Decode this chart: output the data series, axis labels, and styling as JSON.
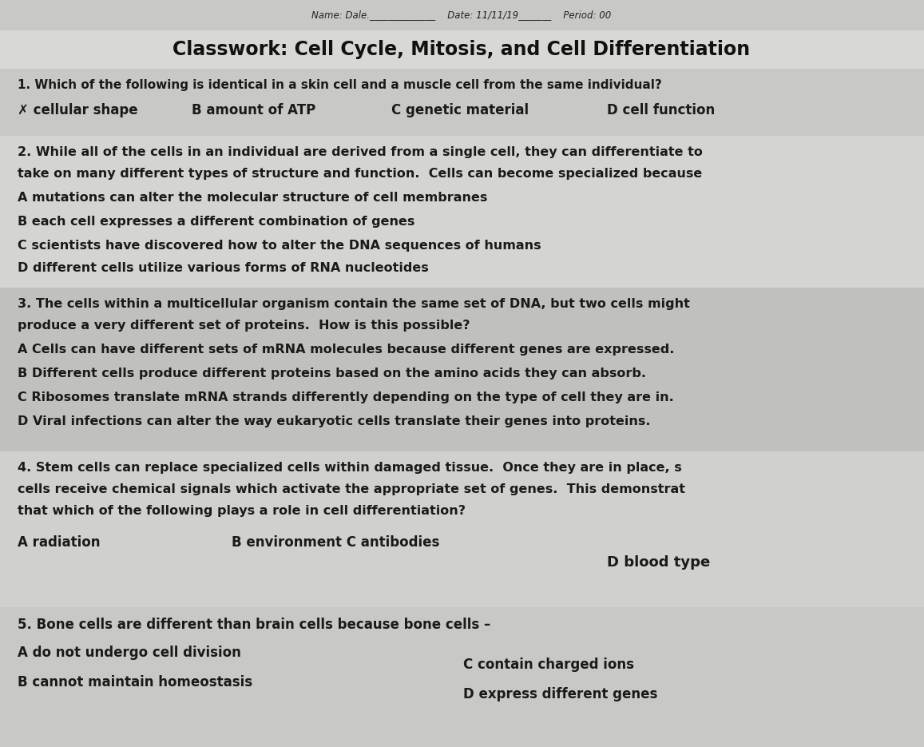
{
  "page_bg": "#b8b8b8",
  "paper_bg": "#d8d8d4",
  "header_line": "Name: Dale.______________    Date: 11/11/19_______    Period: 00",
  "title": "Classwork: Cell Cycle, Mitosis, and Cell Differentiation",
  "q1_bg": "#c8c8c4",
  "q2_bg": "#d4d4d0",
  "q3_bg": "#c0c0bc",
  "q4_bg": "#d0d0cc",
  "q5_bg": "#c8c8c4",
  "text_color": "#1a1a1a",
  "title_color": "#111111",
  "q1_question": "1. Which of the following is identical in a skin cell and a muscle cell from the same individual?",
  "q1_answer_x": "✗ cellular shape",
  "q1_answer_b": "B amount of ATP",
  "q1_answer_c": "C genetic material",
  "q1_answer_d": "D cell function",
  "q2_question_1": "2. While all of the cells in an individual are derived from a single cell, they can differentiate to",
  "q2_question_2": "take on many different types of structure and function.  Cells can become specialized because",
  "q2_a": "A mutations can alter the molecular structure of cell membranes",
  "q2_b": "B each cell expresses a different combination of genes",
  "q2_c": "C scientists have discovered how to alter the DNA sequences of humans",
  "q2_d": "D different cells utilize various forms of RNA nucleotides",
  "q3_question_1": "3. The cells within a multicellular organism contain the same set of DNA, but two cells might",
  "q3_question_2": "produce a very different set of proteins.  How is this possible?",
  "q3_a": "A Cells can have different sets of mRNA molecules because different genes are expressed.",
  "q3_b": "B Different cells produce different proteins based on the amino acids they can absorb.",
  "q3_c": "C Ribosomes translate mRNA strands differently depending on the type of cell they are in.",
  "q3_d": "D Viral infections can alter the way eukaryotic cells translate their genes into proteins.",
  "q4_question_1": "4. Stem cells can replace specialized cells within damaged tissue.  Once they are in place, s",
  "q4_question_2": "cells receive chemical signals which activate the appropriate set of genes.  This demonstrat",
  "q4_question_3": "that which of the following plays a role in cell differentiation?",
  "q4_a": "A radiation",
  "q4_b": "B environment C antibodies",
  "q4_d": "D blood type",
  "q5_question": "5. Bone cells are different than brain cells because bone cells –",
  "q5_al": "A do not undergo cell division",
  "q5_bl": "B cannot maintain homeostasis",
  "q5_cr": "C contain charged ions",
  "q5_dr": "D express different genes"
}
